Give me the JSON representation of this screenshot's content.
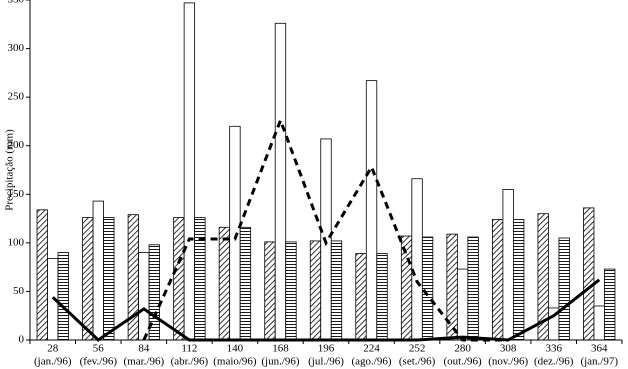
{
  "chart_data": {
    "type": "bar",
    "y_label": "Precipitação (mm)",
    "categories": [
      "28",
      "56",
      "84",
      "112",
      "140",
      "168",
      "196",
      "224",
      "252",
      "280",
      "308",
      "336",
      "364"
    ],
    "x_sublabels": [
      "(jan./96)",
      "(fev./96)",
      "(mar./96)",
      "(abr./96)",
      "(maio/96)",
      "(jun./96)",
      "(jul./96)",
      "(ago./96)",
      "(set./96)",
      "(out./96)",
      "(nov./96)",
      "(dez./96)",
      "(jan./97)"
    ],
    "series": [
      {
        "pattern": "diagonal",
        "values": [
          134,
          126,
          129,
          126,
          116,
          101,
          102,
          89,
          107,
          109,
          124,
          130,
          136
        ]
      },
      {
        "pattern": "none",
        "values": [
          84,
          143,
          90,
          347,
          220,
          326,
          207,
          267,
          166,
          73,
          155,
          33,
          35
        ]
      },
      {
        "pattern": "horizontal",
        "values": [
          90,
          126,
          98,
          126,
          116,
          101,
          102,
          89,
          106,
          106,
          124,
          105,
          73
        ]
      }
    ],
    "lines": [
      {
        "color": "#000000",
        "dashed": false,
        "values": [
          44,
          0,
          32,
          0,
          0,
          0,
          0,
          0,
          0,
          3,
          0,
          25,
          62
        ]
      },
      {
        "color": "#000000",
        "dashed": true,
        "values": [
          null,
          null,
          0,
          104,
          104,
          226,
          100,
          178,
          60,
          0,
          0,
          null,
          null
        ]
      }
    ],
    "ylim": [
      0,
      350
    ],
    "yticks": [
      0,
      50,
      100,
      150,
      200,
      250,
      300,
      350
    ]
  }
}
